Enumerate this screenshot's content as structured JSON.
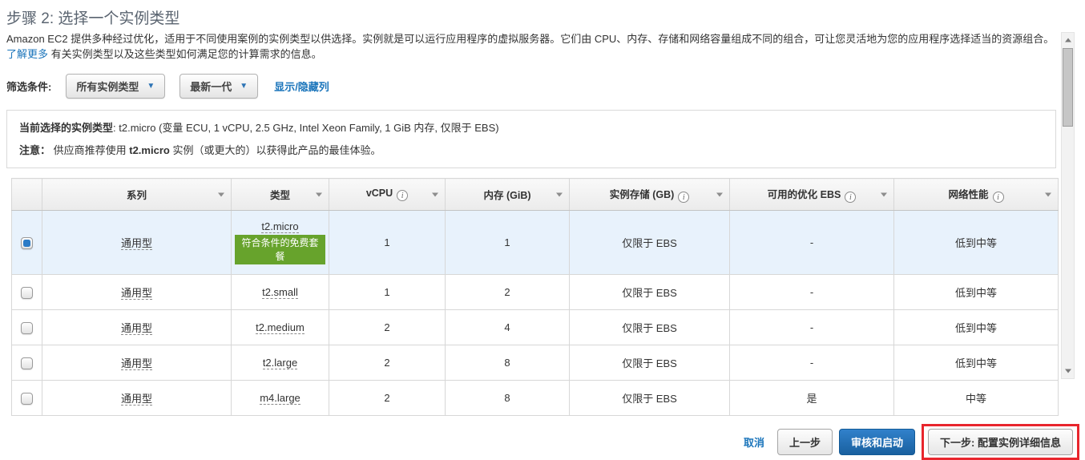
{
  "page": {
    "title": "步骤 2: 选择一个实例类型",
    "description": "Amazon EC2 提供多种经过优化，适用于不同使用案例的实例类型以供选择。实例就是可以运行应用程序的虚拟服务器。它们由 CPU、内存、存储和网络容量组成不同的组合，可让您灵活地为您的应用程序选择适当的资源组合。",
    "learn_more_label": "了解更多",
    "description_suffix": " 有关实例类型以及这些类型如何满足您的计算需求的信息。"
  },
  "filters": {
    "label": "筛选条件:",
    "instance_type_dropdown": "所有实例类型",
    "generation_dropdown": "最新一代",
    "show_hide_columns_label": "显示/隐藏列"
  },
  "selection_info": {
    "current_label": "当前选择的实例类型",
    "current_value": ": t2.micro (变量 ECU, 1 vCPU, 2.5 GHz, Intel Xeon Family, 1 GiB 内存, 仅限于 EBS)",
    "note_label": "注意：",
    "note_prefix": " 供应商推荐使用 ",
    "note_bold": "t2.micro",
    "note_suffix": " 实例（或更大的）以获得此产品的最佳体验。"
  },
  "table": {
    "columns": {
      "family": "系列",
      "type": "类型",
      "vcpu": "vCPU",
      "memory": "内存 (GiB)",
      "storage": "实例存储 (GB)",
      "ebs_optimized": "可用的优化 EBS",
      "network": "网络性能"
    },
    "free_tier_badge": "符合条件的免费套餐",
    "rows": [
      {
        "selected": true,
        "free_tier": true,
        "family": "通用型",
        "type": "t2.micro",
        "vcpu": "1",
        "memory": "1",
        "storage": "仅限于 EBS",
        "ebs_optimized": "-",
        "network": "低到中等"
      },
      {
        "selected": false,
        "free_tier": false,
        "family": "通用型",
        "type": "t2.small",
        "vcpu": "1",
        "memory": "2",
        "storage": "仅限于 EBS",
        "ebs_optimized": "-",
        "network": "低到中等"
      },
      {
        "selected": false,
        "free_tier": false,
        "family": "通用型",
        "type": "t2.medium",
        "vcpu": "2",
        "memory": "4",
        "storage": "仅限于 EBS",
        "ebs_optimized": "-",
        "network": "低到中等"
      },
      {
        "selected": false,
        "free_tier": false,
        "family": "通用型",
        "type": "t2.large",
        "vcpu": "2",
        "memory": "8",
        "storage": "仅限于 EBS",
        "ebs_optimized": "-",
        "network": "低到中等"
      },
      {
        "selected": false,
        "free_tier": false,
        "family": "通用型",
        "type": "m4.large",
        "vcpu": "2",
        "memory": "8",
        "storage": "仅限于 EBS",
        "ebs_optimized": "是",
        "network": "中等"
      }
    ]
  },
  "footer": {
    "cancel_label": "取消",
    "previous_label": "上一步",
    "review_launch_label": "审核和启动",
    "next_label": "下一步: 配置实例详细信息"
  },
  "colors": {
    "link_blue": "#1b75bb",
    "selected_row_bg": "#e8f2fc",
    "checkbox_blue": "#2b7bc7",
    "free_tier_green": "#67a32c",
    "annotation_red": "#e8262d",
    "primary_button_blue": "#19609f"
  }
}
